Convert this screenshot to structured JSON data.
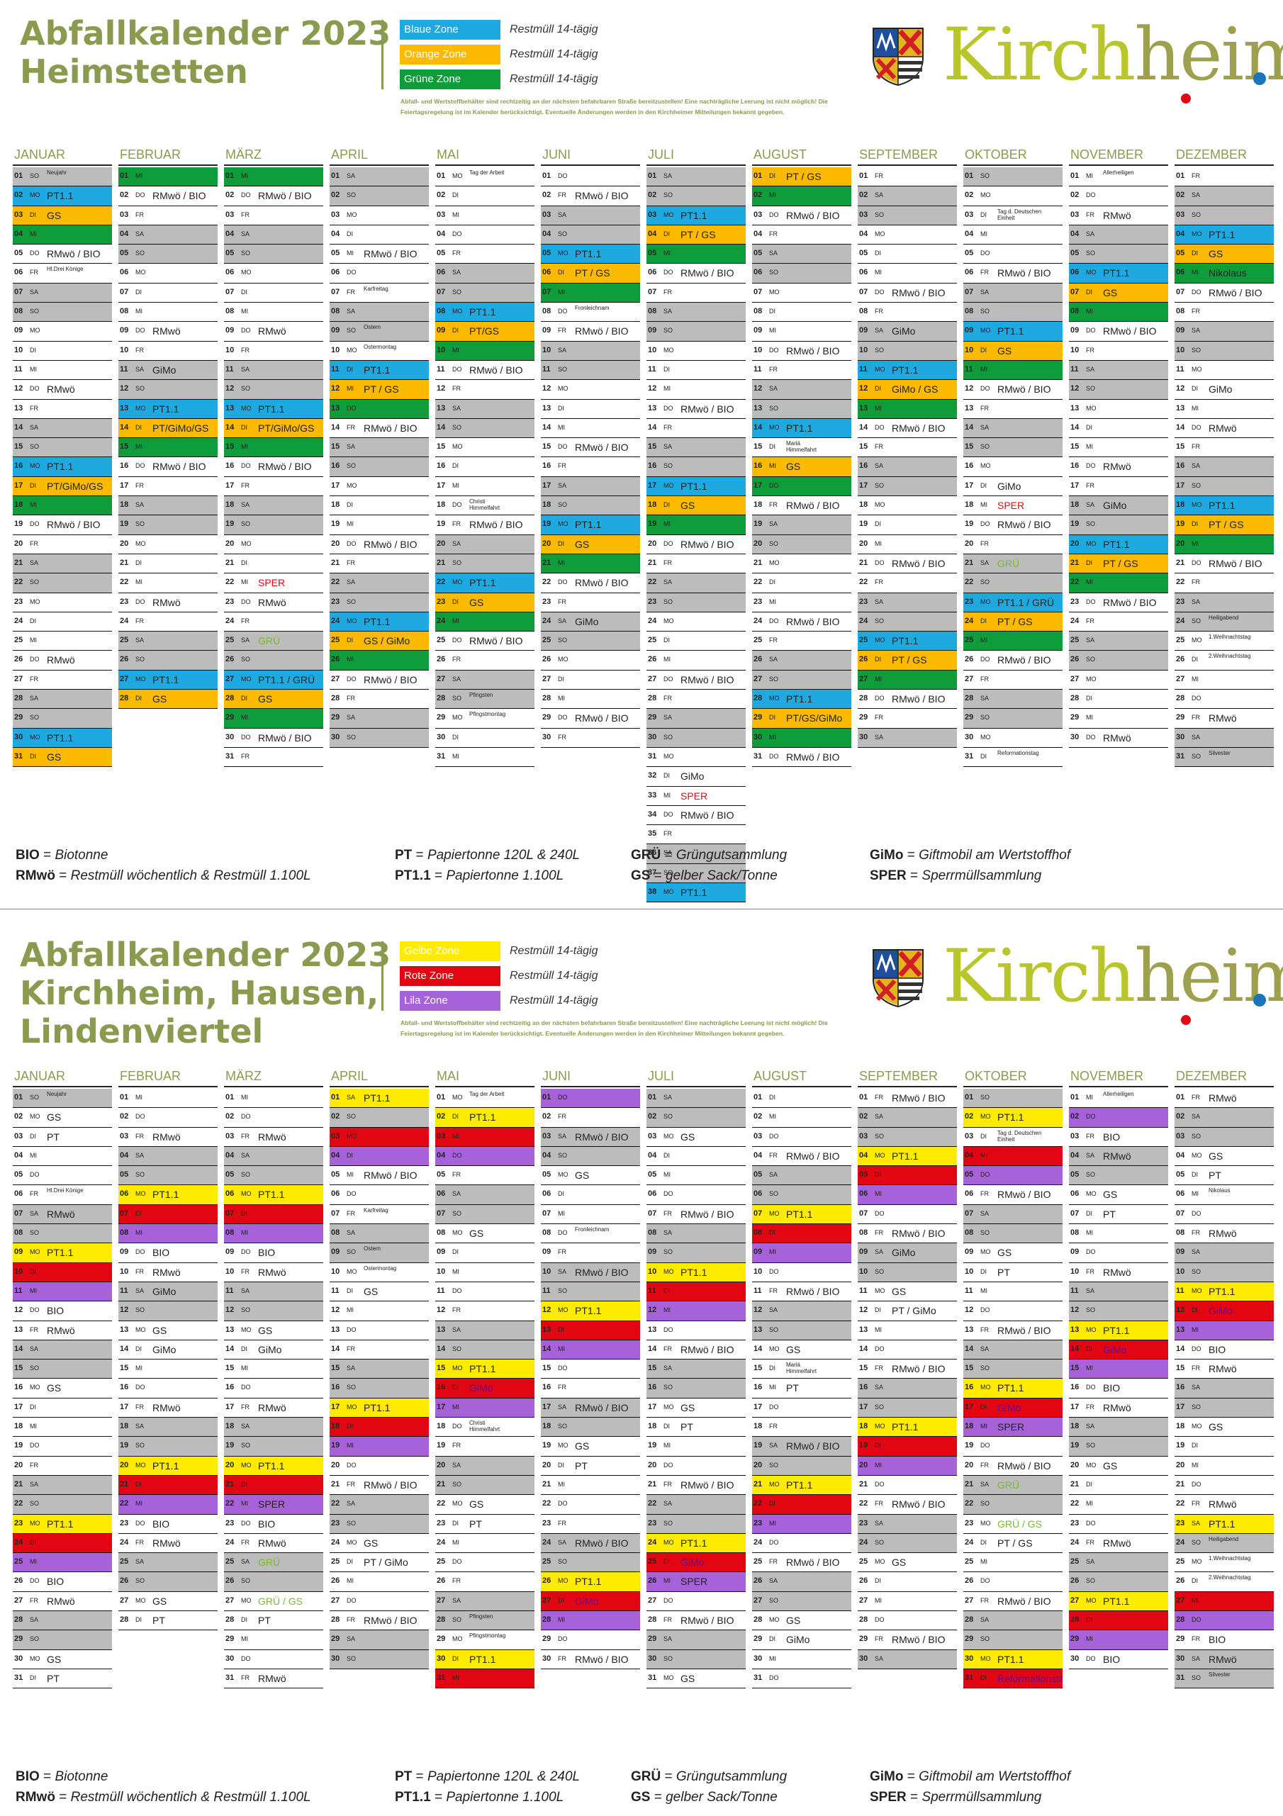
{
  "months": [
    "JANUAR",
    "FEBRUAR",
    "MÄRZ",
    "APRIL",
    "MAI",
    "JUNI",
    "JULI",
    "AUGUST",
    "SEPTEMBER",
    "OKTOBER",
    "NOVEMBER",
    "DEZEMBER"
  ],
  "colors": {
    "Blaue Zone": "#1fa9e1",
    "Orange Zone": "#fbb900",
    "Grüne Zone": "#0f9d3b",
    "Gelbe Zone": "#ffeb00",
    "Rote Zone": "#e20613",
    "Lila Zone": "#a761d9",
    "title": "#8a9a4e",
    "weekend": "#bcbcbc",
    "sper": "#e20613",
    "gru": "#78b833"
  },
  "legend": [
    {
      "k": "BIO",
      "v": "Biotonne"
    },
    {
      "k": "RMwö",
      "v": "Restmüll wöchentlich & Restmüll 1.100L"
    },
    {
      "k": "PT",
      "v": "Papiertonne 120L & 240L"
    },
    {
      "k": "PT1.1",
      "v": "Papiertonne 1.100L"
    },
    {
      "k": "GRÜ",
      "v": "Grüngutsammlung"
    },
    {
      "k": "GS",
      "v": "gelber Sack/Tonne"
    },
    {
      "k": "GiMo",
      "v": "Giftmobil am Wertstoffhof"
    },
    {
      "k": "SPER",
      "v": "Sperrmüllsammlung"
    }
  ],
  "brand": {
    "kirch": "Kirch",
    "heim": "heim",
    "dot": "."
  },
  "notice": "Abfall- und Wertstoffbehälter sind rechtzeitig an der nächsten befahrbaren Straße bereitzustellen! Eine nachträgliche Leerung ist nicht möglich! Die Feiertagsregelung ist im Kalender berücksichtigt. Eventuelle Änderungen werden in den Kirchheimer Mitteilungen bekannt gegeben.",
  "sections": [
    {
      "title": [
        "Abfallkalender 2023",
        "Heimstetten"
      ],
      "zones": [
        {
          "name": "Blaue Zone",
          "rm": "Restmüll 14-tägig",
          "color": "#1fa9e1"
        },
        {
          "name": "Orange Zone",
          "rm": "Restmüll 14-tägig",
          "color": "#fbb900"
        },
        {
          "name": "Grüne Zone",
          "rm": "Restmüll 14-tägig",
          "color": "#0f9d3b"
        }
      ],
      "months": [
        "SO||Neujahr|s;MO|b|PT1.1;DI|o|GS;MI|g;DO||RMwö / BIO;FR||Hl.Drei Könige|s;SA;SO;MO;DI;MI;DO||RMwö;FR;SA;SO;MO|b|PT1.1;DI|o|PT/GiMo/GS;MI|g;DO||RMwö / BIO;FR;SA;SO;MO;DI;MI;DO||RMwö;FR;SA;SO;MO|b|PT1.1;DI|o|GS",
        "MI|g;DO||RMwö / BIO;FR;SA;SO;MO;DI;MI;DO||RMwö;FR;SA||GiMo;SO;MO|b|PT1.1;DI|o|PT/GiMo/GS;MI|g;DO||RMwö / BIO;FR;SA;SO;MO;DI;MI;DO||RMwö;FR;SA;SO;MO|b|PT1.1;DI|o|GS",
        "MI|g;DO||RMwö / BIO;FR;SA;SO;MO;DI;MI;DO||RMwö;FR;SA;SO;MO|b|PT1.1;DI|o|PT/GiMo/GS;MI|g;DO||RMwö / BIO;FR;SA;SO;MO;DI;MI||SPER|p;DO||RMwö;FR;SA||GRÜ|q;SO;MO|b|PT1.1 / GRÜ;DI|o|GS;MI|g;DO||RMwö / BIO;FR",
        "SA;SO;MO;DI;MI||RMwö / BIO;DO;FR||Karfreitag|s;SA;SO||Ostern|s;MO||Ostermontag|s;DI|b|PT1.1;MI|o|PT / GS;DO|g;FR||RMwö / BIO;SA;SO;MO;DI;MI;DO||RMwö / BIO;FR;SA;SO;MO|b|PT1.1;DI|o|GS / GiMo;MI|g;DO||RMwö / BIO;FR;SA;SO",
        "MO||Tag der Arbeit|s;DI;MI;DO;FR;SA;SO;MO|b|PT1.1;DI|o|PT/GS;MI|g;DO||RMwö / BIO;FR;SA;SO;MO;DI;MI;DO||Christi\nHimmelfahrt|s;FR||RMwö / BIO;SA;SO;MO|b|PT1.1;DI|o|GS;MI|g;DO||RMwö / BIO;FR;SA;SO||Pfingsten|s;MO||Pfingstmontag|s;DI;MI",
        "DO;FR||RMwö / BIO;SA;SO;MO|b|PT1.1;DI|o|PT / GS;MI|g;DO||Fronleichnam|s;FR||RMwö / BIO;SA;SO;MO;DI;MI;DO||RMwö / BIO;FR;SA;SO;MO|b|PT1.1;DI|o|GS;MI|g;DO||RMwö / BIO;FR;SA||GiMo;SO;MO;DI;MI;DO||RMwö / BIO;FR",
        "SA;SO;MO|b|PT1.1;DI|o|PT / GS;MI|g;DO||RMwö / BIO;FR;SA;SO;MO;DI;MI;DO||RMwö / BIO;FR;SA;SO;MO|b|PT1.1;DI|o|GS;MI|g;DO||RMwö / BIO;FR;SA;SO;MO;DI;MI;DO||RMwö / BIO;FR;SA;SO;MO;DI||GiMo;MI||SPER|p;DO||RMwö / BIO;FR;SA;SO;MO|b|PT1.1",
        "DI|o|PT / GS;MI|g;DO||RMwö / BIO;FR;SA;SO;MO;DI;MI;DO||RMwö / BIO;FR;SA;SO;MO|b|PT1.1;DI||Mariä\nHimmelfahrt|s;MI|o|GS;DO|g;FR||RMwö / BIO;SA;SO;MO;DI;MI;DO||RMwö / BIO;FR;SA;SO;MO|b|PT1.1;DI|o|PT/GS/GiMo;MI|g;DO||RMwö / BIO",
        "FR;SA;SO;MO;DI;MI;DO||RMwö / BIO;FR;SA||GiMo;SO;MO|b|PT1.1;DI|o|GiMo / GS;MI|g;DO||RMwö / BIO;FR;SA;SO;MO;DI;MI;DO||RMwö / BIO;FR;SA;SO;MO|b|PT1.1;DI|o|PT / GS;MI|g;DO||RMwö / BIO;FR;SA",
        "SO;MO;DI||Tag d. Deutschen\nEinheit|s;MI;DO;FR||RMwö / BIO;SA;SO;MO|b|PT1.1;DI|o|GS;MI|g;DO||RMwö / BIO;FR;SA;SO;MO;DI||GiMo;MI||SPER|p;DO||RMwö / BIO;FR;SA||GRÜ|q;SO;MO|b|PT1.1 / GRÜ;DI|o|PT / GS;MI|g;DO||RMwö / BIO;FR;SA;SO;MO;DI||Reformationstag|s",
        "MI||Allerheiligen|s;DO;FR||RMwö;SA;SO;MO|b|PT1.1;DI|o|GS;MI|g;DO||RMwö / BIO;FR;SA;SO;MO;DI;MI;DO||RMwö;FR;SA||GiMo;SO;MO|b|PT1.1;DI|o|PT / GS;MI|g;DO||RMwö / BIO;FR;SA;SO;MO;DI;MI;DO||RMwö",
        "FR;SA;SO;MO|b|PT1.1;DI|o|GS;MI|g|Nikolaus;DO||RMwö / BIO;FR;SA;SO;MO;DI||GiMo;MI;DO||RMwö;FR;SA;SO;MO|b|PT1.1;DI|o|PT / GS;MI|g;DO||RMwö / BIO;FR;SA;SO||Heiligabend|s;MO||1.Weihnachtstag|s;DI||2.Weihnachtstag|s;MI;DO;FR||RMwö;SA;SO||Silvester|s"
      ]
    },
    {
      "title": [
        "Abfallkalender 2023",
        "Kirchheim, Hausen,",
        "Lindenviertel"
      ],
      "zones": [
        {
          "name": "Gelbe Zone",
          "rm": "Restmüll 14-tägig",
          "color": "#ffeb00"
        },
        {
          "name": "Rote Zone",
          "rm": "Restmüll 14-tägig",
          "color": "#e20613"
        },
        {
          "name": "Lila Zone",
          "rm": "Restmüll 14-tägig",
          "color": "#a761d9"
        }
      ],
      "months": [
        "SO||Neujahr|s;MO||GS;DI||PT;MI;DO;FR||Hl.Drei Könige|s;SA||RMwö;SO;MO|y|PT1.1;DI|r;MI|l;DO||BIO;FR||RMwö;SA;SO;MO||GS;DI;MI;DO;FR;SA;SO;MO|y|PT1.1;DI|r;MI|l;DO||BIO;FR||RMwö;SA;SO;MO||GS;DI||PT",
        "MI;DO;FR||RMwö;SA;SO;MO|y|PT1.1;DI|r;MI|l;DO||BIO;FR||RMwö;SA||GiMo;SO;MO||GS;DI||GiMo;MI;DO;FR||RMwö;SA;SO;MO|y|PT1.1;DI|r;MI|l;DO||BIO;FR||RMwö;SA;SO;MO||GS;DI||PT",
        "MI;DO;FR||RMwö;SA;SO;MO|y|PT1.1;DI|r;MI|l;DO||BIO;FR||RMwö;SA;SO;MO||GS;DI||GiMo;MI;DO;FR||RMwö;SA;SO;MO|y|PT1.1;DI|r;MI|l|SPER;DO||BIO;FR||RMwö;SA||GRÜ|q;SO;MO||GRÜ / GS|q;DI||PT;MI;DO;FR||RMwö",
        "SA|y|PT1.1;SO;MO|r;DI|l;MI||RMwö / BIO;DO;FR||Karfreitag|s;SA;SO||Ostern|s;MO||Ostermontag|s;DI||GS;MI;DO;FR;SA;SO;MO|y|PT1.1;DI|r;MI|l;DO;FR||RMwö / BIO;SA;SO;MO||GS;DI||PT / GiMo;MI;DO;FR||RMwö / BIO;SA;SO",
        "MO||Tag der Arbeit|s;DI|y|PT1.1;MI|r;DO|l;FR;SA;SO;MO||GS;DI;MI;DO;FR;SA;SO;MO|y|PT1.1;DI|r|GiMo;MI|l;DO||Christi\nHimmelfahrt|s;FR;SA;SO;MO||GS;DI||PT;MI;DO;FR;SA;SO||Pfingsten|s;MO||Pfingstmontag|s;DI|y|PT1.1;MI|r",
        "DO|l;FR;SA||RMwö / BIO;SO;MO||GS;DI;MI;DO||Fronleichnam|s;FR;SA||RMwö / BIO;SO;MO|y|PT1.1;DI|r;MI|l;DO;FR;SA||RMwö / BIO;SO;MO||GS;DI||PT;MI;DO;FR;SA||RMwö / BIO;SO;MO|y|PT1.1;DI|r|GiMo;MI|l;DO;FR||RMwö / BIO",
        "SA;SO;MO||GS;DI;MI;DO;FR||RMwö / BIO;SA;SO;MO|y|PT1.1;DI|r;MI|l;DO;FR||RMwö / BIO;SA;SO;MO||GS;DI||PT;MI;DO;FR||RMwö / BIO;SA;SO;MO|y|PT1.1;DI|r|GiMo;MI|l|SPER;DO;FR||RMwö / BIO;SA;SO;MO||GS",
        "DI;MI;DO;FR||RMwö / BIO;SA;SO;MO|y|PT1.1;DI|r;MI|l;DO;FR||RMwö / BIO;SA;SO;MO||GS;DI||Mariä\nHimmelfahrt|s;MI||PT;DO;FR;SA||RMwö / BIO;SO;MO|y|PT1.1;DI|r;MI|l;DO;FR||RMwö / BIO;SA;SO;MO||GS;DI||GiMo;MI;DO",
        "FR||RMwö / BIO;SA;SO;MO|y|PT1.1;DI|r;MI|l;DO;FR||RMwö / BIO;SA||GiMo;SO;MO||GS;DI||PT / GiMo;MI;DO;FR||RMwö / BIO;SA;SO;MO|y|PT1.1;DI|r;MI|l;DO;FR||RMwö / BIO;SA;SO;MO||GS;DI;MI;DO;FR||RMwö / BIO;SA",
        "SO;MO|y|PT1.1;DI||Tag d. Deutschen\nEinheit|s;MI|r;DO|l;FR||RMwö / BIO;SA;SO;MO||GS;DI||PT;MI;DO;FR||RMwö / BIO;SA;SO;MO|y|PT1.1;DI|r|GiMo;MI|l|SPER;DO;FR||RMwö / BIO;SA||GRÜ|q;SO;MO||GRÜ / GS|q;DI||PT / GS;MI;DO;FR||RMwö / BIO;SA;SO;MO|y|PT1.1;DI|r|Reformationstag",
        "MI||Allerheiligen|s;DO|l;FR||BIO;SA||RMwö;SO;MO||GS;DI||PT;MI;DO;FR||RMwö;SA;SO;MO|y|PT1.1;DI|r|GiMo;MI|l;DO||BIO;FR||RMwö;SA;SO;MO||GS;DI;MI;DO;FR||RMwö;SA;SO;MO|y|PT1.1;DI|r;MI|l;DO||BIO",
        "FR||RMwö;SA;SO;MO||GS;DI||PT;MI||Nikolaus|s;DO;FR||RMwö;SA;SO;MO|y|PT1.1;DI|r|GiMo;MI|l;DO||BIO;FR||RMwö;SA;SO;MO||GS;DI;MI;DO;FR||RMwö;SA|y|PT1.1;SO||Heiligabend|s;MO||1.Weihnachtstag|s;DI||2.Weihnachtstag|s;MI|r;DO|l;FR||BIO;SA||RMwö;SO||Silvester|s"
      ]
    }
  ]
}
